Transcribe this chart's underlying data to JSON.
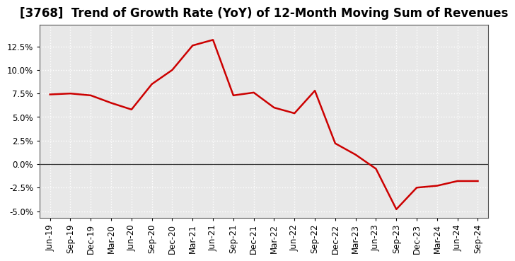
{
  "title": "[3768]  Trend of Growth Rate (YoY) of 12-Month Moving Sum of Revenues",
  "x_labels": [
    "Jun-19",
    "Sep-19",
    "Dec-19",
    "Mar-20",
    "Jun-20",
    "Sep-20",
    "Dec-20",
    "Mar-21",
    "Jun-21",
    "Sep-21",
    "Dec-21",
    "Mar-22",
    "Jun-22",
    "Sep-22",
    "Dec-22",
    "Mar-23",
    "Jun-23",
    "Sep-23",
    "Dec-23",
    "Mar-24",
    "Jun-24",
    "Sep-24"
  ],
  "y_values": [
    0.074,
    0.075,
    0.073,
    0.065,
    0.058,
    0.085,
    0.1,
    0.126,
    0.132,
    0.073,
    0.076,
    0.06,
    0.054,
    0.078,
    0.022,
    0.01,
    -0.005,
    -0.048,
    -0.025,
    -0.023,
    -0.018,
    -0.018
  ],
  "line_color": "#CC0000",
  "line_width": 1.8,
  "background_color": "#ffffff",
  "plot_bg_color": "#e8e8e8",
  "grid_color": "#ffffff",
  "title_fontsize": 12,
  "tick_fontsize": 8.5,
  "ylim": [
    -0.057,
    0.148
  ],
  "yticks": [
    -0.05,
    -0.025,
    0.0,
    0.025,
    0.05,
    0.075,
    0.1,
    0.125
  ]
}
